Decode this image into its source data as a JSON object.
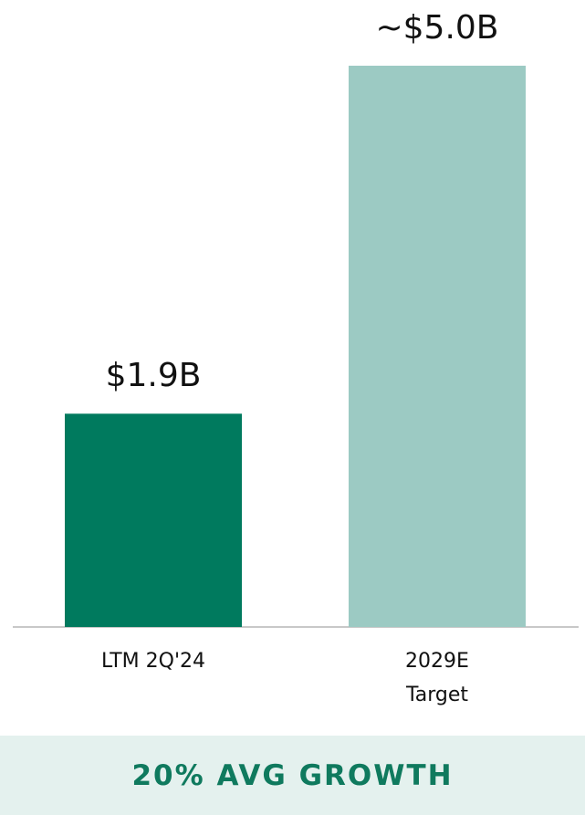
{
  "chart_data": {
    "type": "bar",
    "categories": [
      "LTM 2Q'24",
      "2029E\nTarget"
    ],
    "values": [
      1.9,
      5.0
    ],
    "value_labels": [
      "$1.9B",
      "~$5.0B"
    ],
    "colors": [
      "#007a5e",
      "#9ccac3"
    ],
    "annotation": "20% AVG GROWTH"
  }
}
